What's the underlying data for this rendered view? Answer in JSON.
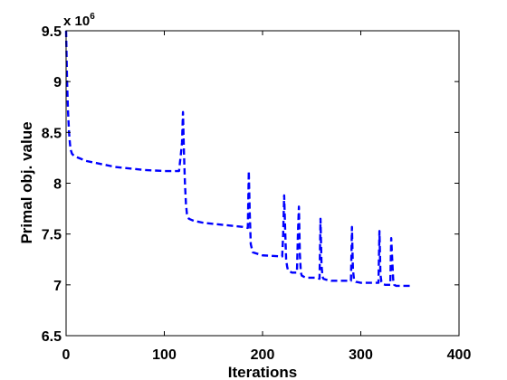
{
  "chart_data": {
    "type": "line",
    "title": "",
    "xlabel": "Iterations",
    "ylabel": "Primal obj. value",
    "xlim": [
      0,
      400
    ],
    "ylim": [
      6.5,
      9.5
    ],
    "y_multiplier": {
      "base": "x 10",
      "exponent": "6"
    },
    "x_ticks": [
      0,
      100,
      200,
      300,
      400
    ],
    "y_ticks": [
      6.5,
      7,
      7.5,
      8,
      8.5,
      9,
      9.5
    ],
    "grid": false,
    "legend": "none",
    "series": [
      {
        "color": "#0000ff",
        "line_style": "dashed",
        "x": [
          0,
          1,
          2,
          3,
          4,
          5,
          6,
          8,
          10,
          15,
          20,
          30,
          40,
          50,
          60,
          70,
          80,
          90,
          100,
          110,
          115,
          117,
          118,
          119,
          120,
          121,
          122,
          123,
          125,
          130,
          140,
          150,
          160,
          170,
          180,
          185,
          186,
          187,
          188,
          190,
          200,
          210,
          220,
          221,
          222,
          223,
          224,
          225,
          226,
          228,
          230,
          235,
          236,
          237,
          238,
          239,
          240,
          242,
          245,
          250,
          255,
          258,
          259,
          260,
          261,
          262,
          265,
          270,
          280,
          290,
          291,
          292,
          293,
          294,
          295,
          300,
          305,
          310,
          315,
          318,
          319,
          320,
          321,
          322,
          325,
          330,
          331,
          332,
          333,
          334,
          336,
          340,
          345,
          350
        ],
        "y": [
          9.5,
          9.0,
          8.7,
          8.5,
          8.38,
          8.32,
          8.29,
          8.27,
          8.26,
          8.24,
          8.22,
          8.2,
          8.18,
          8.16,
          8.15,
          8.14,
          8.13,
          8.125,
          8.12,
          8.12,
          8.12,
          8.3,
          8.4,
          8.7,
          8.3,
          8.0,
          7.8,
          7.7,
          7.65,
          7.63,
          7.61,
          7.6,
          7.59,
          7.58,
          7.57,
          7.56,
          8.12,
          7.7,
          7.4,
          7.32,
          7.29,
          7.285,
          7.28,
          7.5,
          7.88,
          7.55,
          7.25,
          7.18,
          7.14,
          7.13,
          7.12,
          7.12,
          7.5,
          7.77,
          7.3,
          7.12,
          7.09,
          7.08,
          7.07,
          7.07,
          7.07,
          7.06,
          7.65,
          7.2,
          7.08,
          7.06,
          7.05,
          7.04,
          7.04,
          7.04,
          7.57,
          7.15,
          7.06,
          7.04,
          7.03,
          7.02,
          7.02,
          7.02,
          7.02,
          7.02,
          7.53,
          7.1,
          7.03,
          7.01,
          7.0,
          7.0,
          7.46,
          7.25,
          7.05,
          7.0,
          6.99,
          6.99,
          6.99,
          6.99
        ]
      }
    ]
  }
}
